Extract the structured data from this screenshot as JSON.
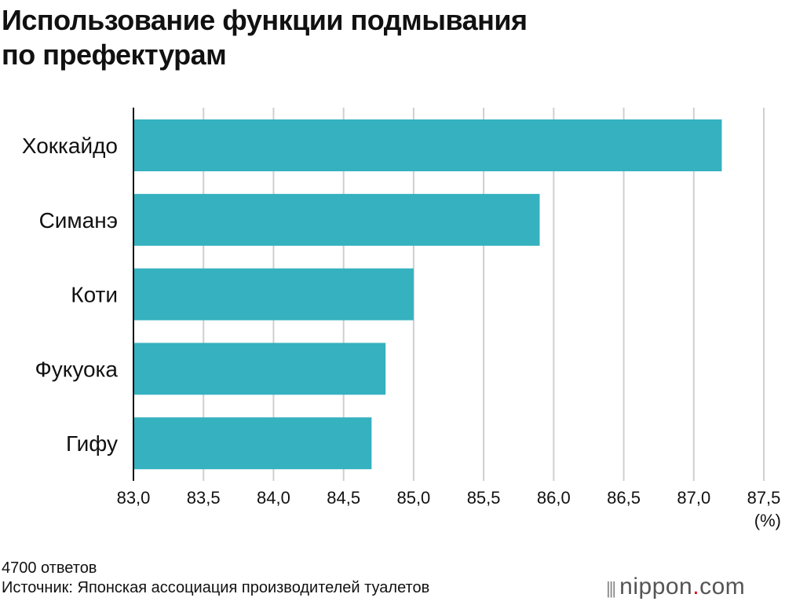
{
  "title_line1": "Использование функции подмывания",
  "title_line2": "по префектурам",
  "chart_data": {
    "type": "bar",
    "orientation": "horizontal",
    "categories": [
      "Хоккайдо",
      "Симанэ",
      "Коти",
      "Фукуока",
      "Гифу"
    ],
    "values": [
      87.2,
      85.9,
      85.0,
      84.8,
      84.7
    ],
    "xlim": [
      83.0,
      87.5
    ],
    "ticks": [
      "83,0",
      "83,5",
      "84,0",
      "84,5",
      "85,0",
      "85,5",
      "86,0",
      "86,5",
      "87,0",
      "87,5"
    ],
    "unit_label": "(%)",
    "grid": true,
    "bar_color": "#35b1bf"
  },
  "footer": {
    "responses": "4700 ответов",
    "source": "Источник: Японская ассоциация производителей туалетов"
  },
  "logo": {
    "text": "nippon",
    "dot": ".",
    "suffix": "com"
  }
}
